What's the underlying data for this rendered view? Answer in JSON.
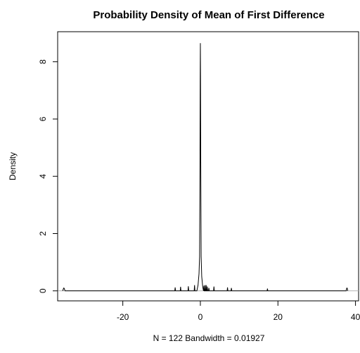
{
  "chart_data": {
    "type": "line",
    "title": "Probability Density of Mean of First Difference",
    "xlabel": "N = 122   Bandwidth = 0.01927",
    "ylabel": "Density",
    "xlim": [
      -36.8,
      40.8
    ],
    "ylim": [
      -0.35,
      9.05
    ],
    "x_ticks": [
      -20,
      0,
      20,
      40
    ],
    "y_ticks": [
      0,
      2,
      4,
      6,
      8
    ],
    "grid": false,
    "zero_line": true,
    "colors": {
      "line": "#000000",
      "zero_line": "#b4b4b4",
      "frame": "#000000"
    },
    "series": [
      {
        "x": [
          -35.5,
          -35.3,
          -35.2,
          -35.1,
          -34.9,
          -10,
          -6.6,
          -6.5,
          -6.4,
          -5.2,
          -5.1,
          -5.0,
          -3.2,
          -3.1,
          -3.0,
          -1.6,
          -1.5,
          -1.4,
          -0.9,
          -0.6,
          -0.35,
          -0.2,
          -0.1,
          -0.04,
          0,
          0.04,
          0.1,
          0.2,
          0.35,
          0.6,
          0.8,
          0.9,
          1.0,
          1.15,
          1.2,
          1.3,
          1.45,
          1.5,
          1.6,
          1.75,
          1.8,
          1.9,
          2.1,
          2.2,
          2.3,
          2.5,
          3.4,
          3.5,
          3.6,
          6.9,
          7.0,
          7.1,
          7.9,
          8.0,
          8.1,
          17.2,
          17.3,
          17.4,
          37.6,
          37.7,
          37.8,
          37.9,
          38.0
        ],
        "y": [
          0,
          0.08,
          0.1,
          0.08,
          0,
          0,
          0,
          0.12,
          0,
          0,
          0.14,
          0,
          0,
          0.16,
          0,
          0,
          0.2,
          0,
          0,
          0.2,
          0.6,
          1.2,
          4.5,
          7.5,
          8.65,
          7.5,
          4.5,
          1.2,
          0.5,
          0.15,
          0,
          0.18,
          0,
          0,
          0.2,
          0,
          0,
          0.2,
          0,
          0,
          0.15,
          0,
          0,
          0.1,
          0,
          0,
          0,
          0.15,
          0,
          0,
          0.12,
          0,
          0,
          0.1,
          0,
          0,
          0.08,
          0,
          0,
          0.08,
          0.1,
          0.08,
          0
        ]
      }
    ]
  }
}
